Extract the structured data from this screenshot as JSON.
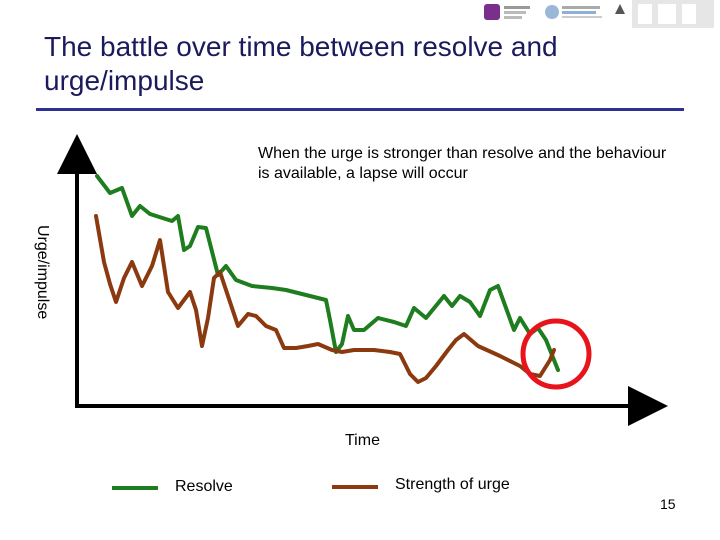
{
  "slide": {
    "title": "The battle over time between resolve and urge/impulse",
    "annotation": "When the urge is stronger than resolve and the behaviour is available, a lapse will occur",
    "page_number": "15"
  },
  "diagram": {
    "y_axis_label": "Urge/impulse",
    "x_axis_label": "Time",
    "legend": [
      {
        "label": "Resolve",
        "color": "#1e7d1e"
      },
      {
        "label": "Strength of urge",
        "color": "#8b3a10"
      }
    ],
    "highlight_color": "#e8141c",
    "axis_color": "#000000"
  }
}
